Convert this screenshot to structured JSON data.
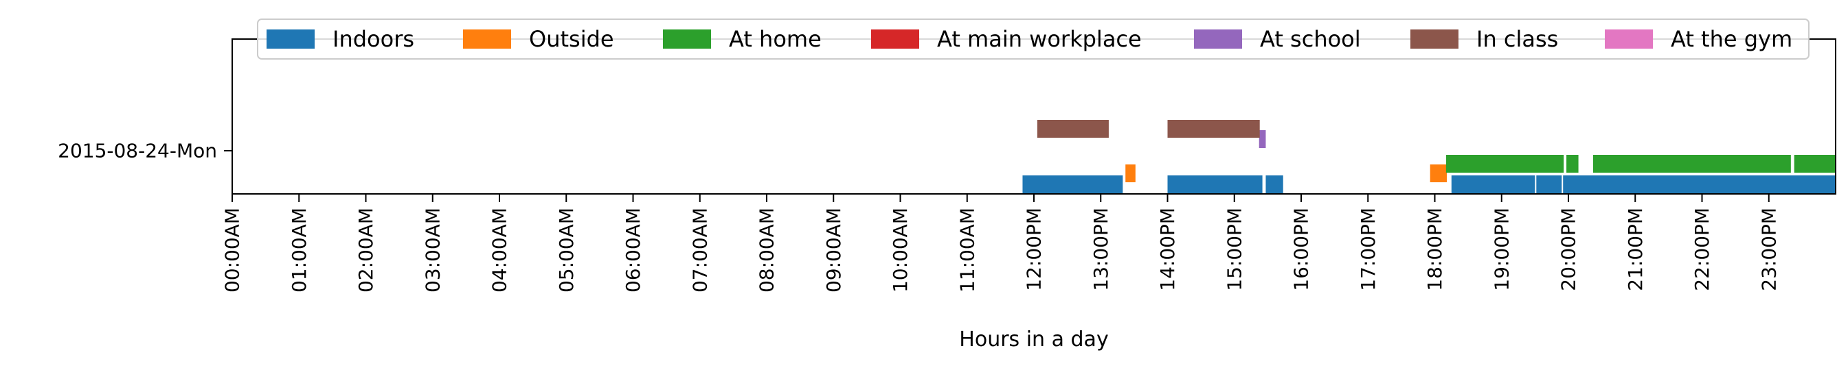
{
  "chart_data": {
    "type": "timeline",
    "xlabel": "Hours in a day",
    "x_unit": "hour of day",
    "xlim": [
      0,
      24
    ],
    "y_categories": [
      "2015-08-24-Mon"
    ],
    "x_ticks": [
      "00:00AM",
      "01:00AM",
      "02:00AM",
      "03:00AM",
      "04:00AM",
      "05:00AM",
      "06:00AM",
      "07:00AM",
      "08:00AM",
      "09:00AM",
      "10:00AM",
      "11:00AM",
      "12:00PM",
      "13:00PM",
      "14:00PM",
      "15:00PM",
      "16:00PM",
      "17:00PM",
      "18:00PM",
      "19:00PM",
      "20:00PM",
      "21:00PM",
      "22:00PM",
      "23:00PM"
    ],
    "legend_position": "top",
    "series": [
      {
        "name": "Indoors",
        "color": "#1f77b4",
        "intervals": [
          [
            11.83,
            13.33
          ],
          [
            14.0,
            15.42
          ],
          [
            15.47,
            15.73
          ],
          [
            18.25,
            19.5
          ],
          [
            19.52,
            19.9
          ],
          [
            19.92,
            24.0
          ]
        ]
      },
      {
        "name": "Outside",
        "color": "#ff7f0e",
        "intervals": [
          [
            13.37,
            13.52
          ],
          [
            17.93,
            18.18
          ]
        ]
      },
      {
        "name": "At home",
        "color": "#2ca02c",
        "intervals": [
          [
            18.17,
            19.93
          ],
          [
            19.97,
            20.15
          ],
          [
            20.37,
            23.33
          ],
          [
            23.38,
            24.0
          ]
        ]
      },
      {
        "name": "At main workplace",
        "color": "#d62728",
        "intervals": []
      },
      {
        "name": "At school",
        "color": "#9467bd",
        "intervals": [
          [
            15.37,
            15.47
          ]
        ]
      },
      {
        "name": "In class",
        "color": "#8c564b",
        "intervals": [
          [
            12.05,
            13.12
          ],
          [
            14.0,
            15.38
          ]
        ]
      },
      {
        "name": "At the gym",
        "color": "#e377c2",
        "intervals": []
      }
    ]
  }
}
